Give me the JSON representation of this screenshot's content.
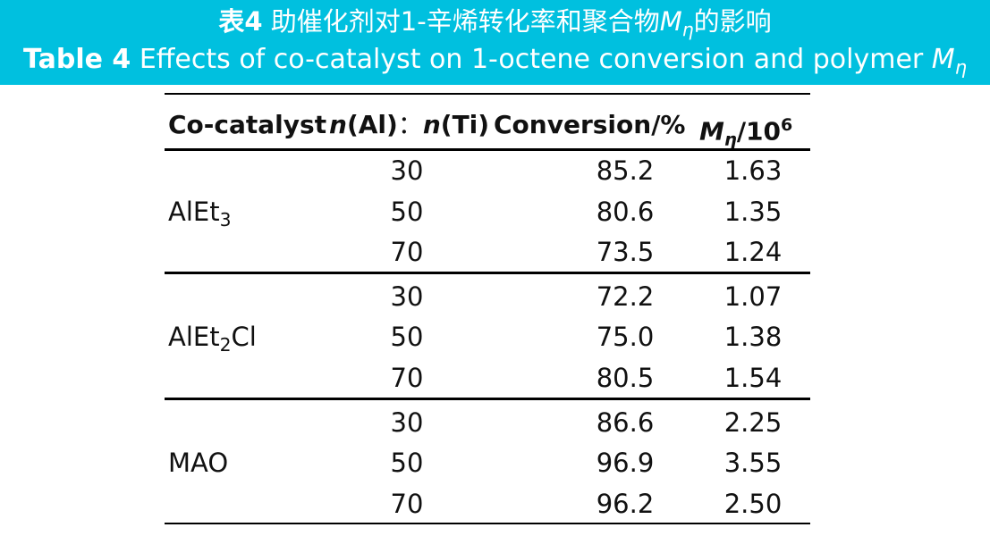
{
  "title": {
    "cn_label": "表4",
    "cn_text": "助催化剂对1-辛烯转化率和聚合物",
    "cn_symbol": "M",
    "cn_symbol_sub": "η",
    "cn_tail": "的影响",
    "en_label": "Table 4",
    "en_text": "Effects of co-catalyst on 1-octene conversion and polymer",
    "en_symbol": "M",
    "en_symbol_sub": "η"
  },
  "table": {
    "headers": {
      "cocatalyst": "Co-catalyst",
      "ratio_n1": "n",
      "ratio_al": "(Al)",
      "ratio_sep": "：",
      "ratio_n2": "n",
      "ratio_ti": "(Ti)",
      "conversion": "Conversion/%",
      "mn_symbol": "M",
      "mn_sub": "η",
      "mn_unit": "/10",
      "mn_exp": "6"
    },
    "groups": [
      {
        "cocatalyst_main": "AlEt",
        "cocatalyst_sub": "3",
        "cocatalyst_tail": "",
        "rows": [
          {
            "ratio": "30",
            "conversion": "85.2",
            "mn": "1.63"
          },
          {
            "ratio": "50",
            "conversion": "80.6",
            "mn": "1.35"
          },
          {
            "ratio": "70",
            "conversion": "73.5",
            "mn": "1.24"
          }
        ]
      },
      {
        "cocatalyst_main": "AlEt",
        "cocatalyst_sub": "2",
        "cocatalyst_tail": "Cl",
        "rows": [
          {
            "ratio": "30",
            "conversion": "72.2",
            "mn": "1.07"
          },
          {
            "ratio": "50",
            "conversion": "75.0",
            "mn": "1.38"
          },
          {
            "ratio": "70",
            "conversion": "80.5",
            "mn": "1.54"
          }
        ]
      },
      {
        "cocatalyst_main": "MAO",
        "cocatalyst_sub": "",
        "cocatalyst_tail": "",
        "rows": [
          {
            "ratio": "30",
            "conversion": "86.6",
            "mn": "2.25"
          },
          {
            "ratio": "50",
            "conversion": "96.9",
            "mn": "3.55"
          },
          {
            "ratio": "70",
            "conversion": "96.2",
            "mn": "2.50"
          }
        ]
      }
    ]
  },
  "colors": {
    "header_bg": "#00c0df",
    "header_text": "#ffffff",
    "rule": "#000000"
  }
}
